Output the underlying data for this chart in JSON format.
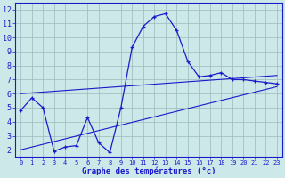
{
  "hours": [
    0,
    1,
    2,
    3,
    4,
    5,
    6,
    7,
    8,
    9,
    10,
    11,
    12,
    13,
    14,
    15,
    16,
    17,
    18,
    19,
    20,
    21,
    22,
    23
  ],
  "temp_curve": [
    4.8,
    5.7,
    5.0,
    1.9,
    2.2,
    2.3,
    4.3,
    2.5,
    1.8,
    5.0,
    9.3,
    10.8,
    11.5,
    11.7,
    10.5,
    8.3,
    7.2,
    7.3,
    7.5,
    7.0,
    7.0,
    6.9,
    6.8,
    6.7
  ],
  "upper_trend_x": [
    0,
    23
  ],
  "upper_trend_y": [
    6.0,
    7.3
  ],
  "lower_trend_x": [
    0,
    23
  ],
  "lower_trend_y": [
    2.0,
    6.5
  ],
  "bg_color": "#cce8e8",
  "line_color": "#1a1acc",
  "grid_color": "#99bbbb",
  "ylabel_values": [
    2,
    3,
    4,
    5,
    6,
    7,
    8,
    9,
    10,
    11,
    12
  ],
  "xlabel": "Graphe des températures (°c)",
  "ylim": [
    1.5,
    12.5
  ],
  "xlim": [
    -0.5,
    23.5
  ],
  "xtick_fontsize": 5.0,
  "ytick_fontsize": 6.0,
  "xlabel_fontsize": 6.5
}
